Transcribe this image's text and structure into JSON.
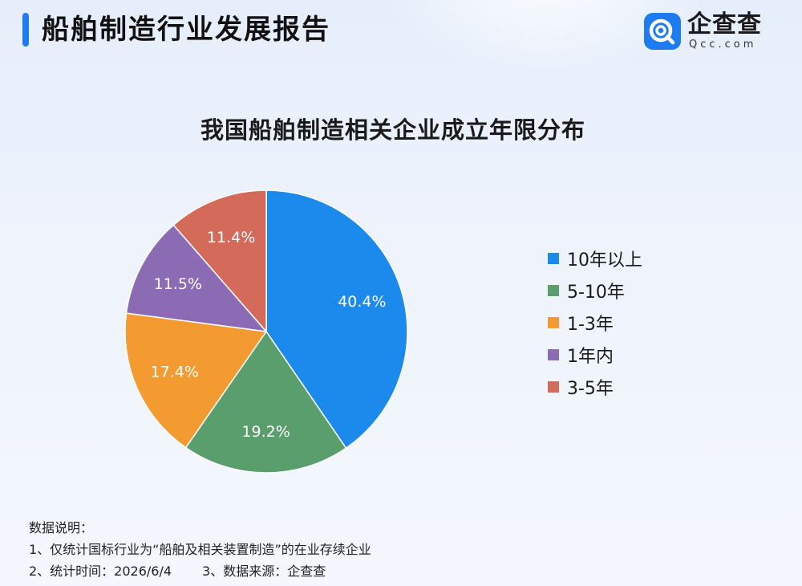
{
  "header": {
    "title": "船舶制造行业发展报告"
  },
  "logo": {
    "name": "企查查",
    "sub": "Qcc.com"
  },
  "chart_data": {
    "type": "pie",
    "title": "我国船舶制造相关企业成立年限分布",
    "slices": [
      {
        "label": "10年以上",
        "value": 40.4,
        "display": "40.4%",
        "color": "#1c89ec"
      },
      {
        "label": "5-10年",
        "value": 19.2,
        "display": "19.2%",
        "color": "#5b9e6d"
      },
      {
        "label": "1-3年",
        "value": 17.4,
        "display": "17.4%",
        "color": "#f39a31"
      },
      {
        "label": "1年内",
        "value": 11.5,
        "display": "11.5%",
        "color": "#8b6bb3"
      },
      {
        "label": "3-5年",
        "value": 11.4,
        "display": "11.4%",
        "color": "#d36a5a"
      }
    ],
    "legend": {
      "placement": "right",
      "items": [
        "10年以上",
        "5-10年",
        "1-3年",
        "1年内",
        "3-5年"
      ]
    }
  },
  "notes": {
    "heading": "数据说明：",
    "line1": "1、仅统计国标行业为“船舶及相关装置制造”的在业存续企业",
    "line2a": "2、统计时间：2026/6/4",
    "line2b": "3、数据来源：企查查"
  }
}
